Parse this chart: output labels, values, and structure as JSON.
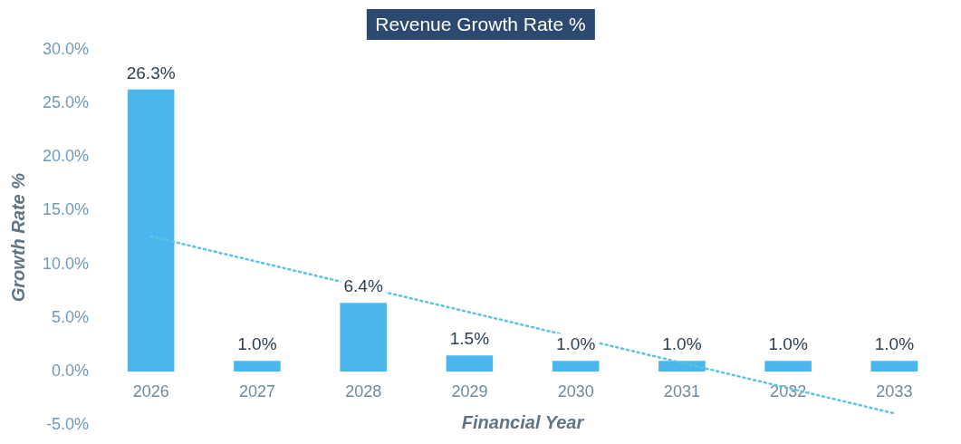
{
  "chart_data": {
    "type": "bar",
    "title": "Revenue Growth Rate %",
    "xlabel": "Financial Year",
    "ylabel": "Growth Rate %",
    "categories": [
      "2026",
      "2027",
      "2028",
      "2029",
      "2030",
      "2031",
      "2032",
      "2033"
    ],
    "series": [
      {
        "color": "#4ab6ee",
        "values": [
          26.3,
          1.0,
          6.4,
          1.5,
          1.0,
          1.0,
          1.0,
          1.0
        ],
        "value_labels": [
          "26.3%",
          "1.0%",
          "6.4%",
          "1.5%",
          "1.0%",
          "1.0%",
          "1.0%",
          "1.0%"
        ]
      },
      {
        "type": "line",
        "color": "#5cc3e0",
        "values": [
          12.6,
          null,
          null,
          null,
          null,
          null,
          null,
          -3.9
        ],
        "line_style": "dotted",
        "marker": "none"
      }
    ],
    "ylim": [
      -5,
      30
    ],
    "yticks": [
      {
        "value": -5,
        "label": "-5.0%"
      },
      {
        "value": 0,
        "label": "0.0%"
      },
      {
        "value": 5,
        "label": "5.0%"
      },
      {
        "value": 10,
        "label": "10.0%"
      },
      {
        "value": 15,
        "label": "15.0%"
      },
      {
        "value": 20,
        "label": "20.0%"
      },
      {
        "value": 25,
        "label": "25.0%"
      },
      {
        "value": 30,
        "label": "30.0%"
      }
    ],
    "grid": false,
    "legend": false
  }
}
